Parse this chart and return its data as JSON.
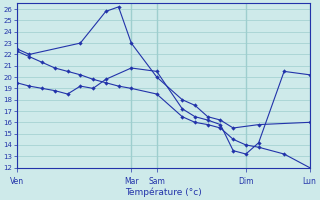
{
  "background_color": "#ceeaea",
  "grid_color": "#9ecece",
  "line_color": "#2233aa",
  "xlabel": "Température (°c)",
  "ylim": [
    12,
    26.5
  ],
  "ytick_min": 12,
  "ytick_max": 26,
  "day_labels": [
    "Ven",
    "Mar",
    "Sam",
    "Dim",
    "Lun"
  ],
  "day_positions": [
    0,
    9,
    11,
    18,
    23
  ],
  "xlim": [
    0,
    23
  ],
  "series1_x": [
    0,
    1,
    5,
    7,
    8,
    9,
    11,
    13,
    14,
    15,
    16,
    17,
    19,
    23
  ],
  "series1_y": [
    22.5,
    22.0,
    23.0,
    25.8,
    26.2,
    23.0,
    20.0,
    18.0,
    17.5,
    16.5,
    16.2,
    15.5,
    15.8,
    16.0
  ],
  "series2_x": [
    0,
    1,
    2,
    3,
    4,
    5,
    6,
    7,
    9,
    11,
    13,
    14,
    15,
    16,
    17,
    18,
    19,
    21,
    23
  ],
  "series2_y": [
    19.5,
    19.2,
    19.0,
    18.8,
    18.5,
    19.2,
    19.0,
    19.8,
    20.8,
    20.5,
    17.2,
    16.5,
    16.2,
    15.8,
    13.5,
    13.2,
    14.2,
    20.5,
    20.2
  ],
  "series3_x": [
    0,
    1,
    2,
    3,
    4,
    5,
    6,
    7,
    8,
    9,
    11,
    13,
    14,
    15,
    16,
    17,
    18,
    19,
    21,
    23
  ],
  "series3_y": [
    22.3,
    21.8,
    21.3,
    20.8,
    20.5,
    20.2,
    19.8,
    19.5,
    19.2,
    19.0,
    18.5,
    16.5,
    16.0,
    15.8,
    15.5,
    14.5,
    14.0,
    13.8,
    13.2,
    12.0
  ]
}
